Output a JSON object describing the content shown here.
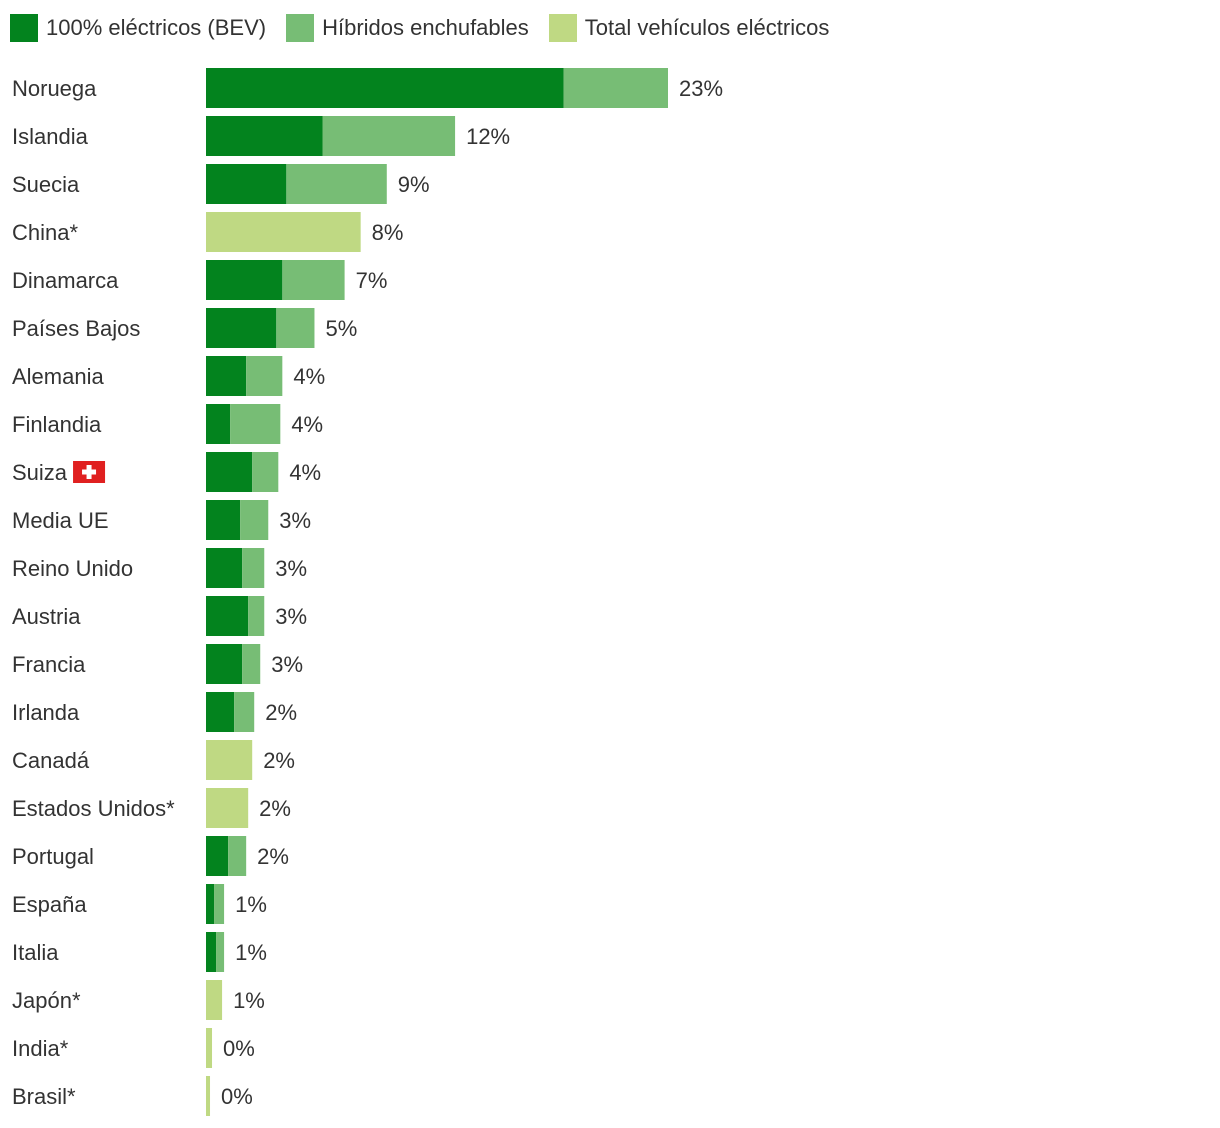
{
  "legend": {
    "bev": "100% eléctricos (BEV)",
    "phev": "Híbridos enchufables",
    "total": "Total vehículos eléctricos"
  },
  "colors": {
    "bev": "#03831e",
    "phev": "#77bd75",
    "total": "#bfd983",
    "text": "#333333",
    "flag_red": "#e02020"
  },
  "chart_data": {
    "type": "bar",
    "orientation": "horizontal",
    "stacked": true,
    "categories": [
      "Noruega",
      "Islandia",
      "Suecia",
      "China*",
      "Dinamarca",
      "Países Bajos",
      "Alemania",
      "Finlandia",
      "Suiza",
      "Media UE",
      "Reino Unido",
      "Austria",
      "Francia",
      "Irlanda",
      "Canadá",
      "Estados Unidos*",
      "Portugal",
      "España",
      "Italia",
      "Japón*",
      "India*",
      "Brasil*"
    ],
    "series": [
      {
        "name": "100% eléctricos (BEV)",
        "values": [
          17.8,
          5.8,
          4.0,
          0,
          3.8,
          3.5,
          2.0,
          1.2,
          2.3,
          1.7,
          1.8,
          2.1,
          1.8,
          1.4,
          0,
          0,
          1.1,
          0.4,
          0.5,
          0,
          0,
          0
        ]
      },
      {
        "name": "Híbridos enchufables",
        "values": [
          5.2,
          6.6,
          5.0,
          0,
          3.1,
          1.9,
          1.8,
          2.5,
          1.3,
          1.4,
          1.1,
          0.8,
          0.9,
          1.0,
          0,
          0,
          0.9,
          0.5,
          0.4,
          0,
          0,
          0
        ]
      },
      {
        "name": "Total vehículos eléctricos",
        "values": [
          0,
          0,
          0,
          7.7,
          0,
          0,
          0,
          0,
          0,
          0,
          0,
          0,
          0,
          0,
          2.3,
          2.1,
          0,
          0,
          0,
          0.8,
          0.3,
          0.2
        ]
      }
    ],
    "value_labels": [
      "23%",
      "12%",
      "9%",
      "8%",
      "7%",
      "5%",
      "4%",
      "4%",
      "4%",
      "3%",
      "3%",
      "3%",
      "3%",
      "2%",
      "2%",
      "2%",
      "2%",
      "1%",
      "1%",
      "1%",
      "0%",
      "0%"
    ],
    "flag_rows": [
      "Suiza"
    ],
    "xlim": [
      0,
      23
    ],
    "grid": false,
    "legend_position": "top-left"
  }
}
